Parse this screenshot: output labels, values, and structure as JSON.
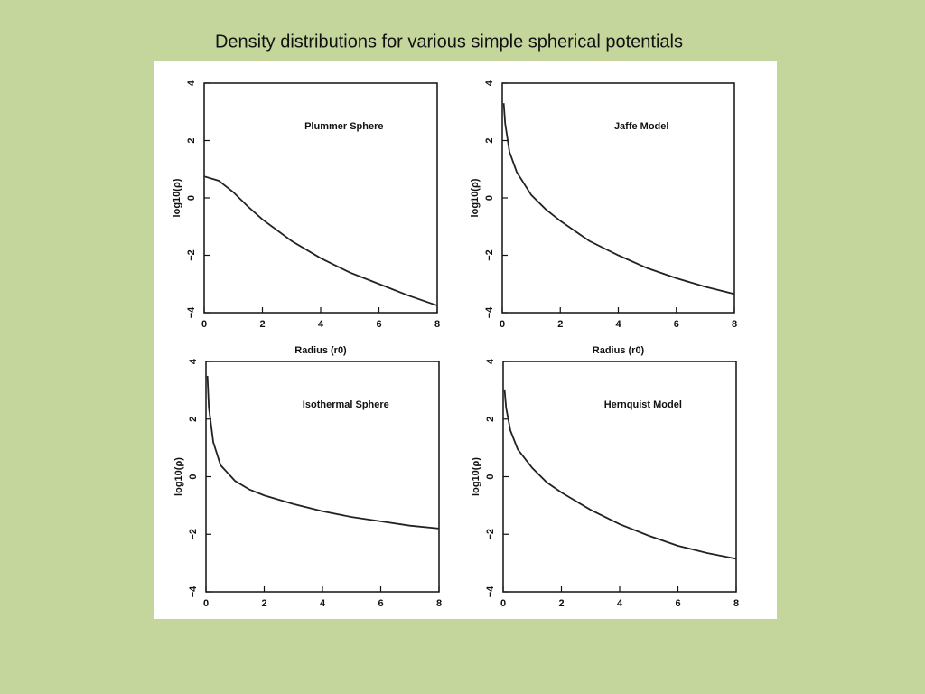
{
  "title": "Density distributions for various simple spherical potentials",
  "chart_data": [
    {
      "type": "line",
      "title": "Plummer Sphere",
      "xlabel": "Radius (r0)",
      "ylabel": "log10(ρ)",
      "x": [
        0,
        0.5,
        1,
        1.5,
        2,
        3,
        4,
        5,
        6,
        7,
        8
      ],
      "values": [
        0.75,
        0.6,
        0.2,
        -0.3,
        -0.75,
        -1.5,
        -2.1,
        -2.6,
        -3.0,
        -3.4,
        -3.75
      ],
      "color": "#222222",
      "xlim": [
        0,
        8
      ],
      "ylim": [
        -4,
        4
      ],
      "xticks": [
        0,
        2,
        4,
        6,
        8
      ],
      "yticks": [
        {
          "value": -4,
          "label": "−4"
        },
        {
          "value": -2,
          "label": "−2"
        },
        0,
        2,
        4
      ]
    },
    {
      "type": "line",
      "title": "Jaffe Model",
      "xlabel": "Radius (r0)",
      "ylabel": "log10(ρ)",
      "x": [
        0.05,
        0.1,
        0.25,
        0.5,
        1,
        1.5,
        2,
        3,
        4,
        5,
        6,
        7,
        8
      ],
      "values": [
        3.3,
        2.6,
        1.6,
        0.9,
        0.1,
        -0.4,
        -0.8,
        -1.5,
        -2.0,
        -2.45,
        -2.8,
        -3.1,
        -3.35
      ],
      "color": "#222222",
      "xlim": [
        0,
        8
      ],
      "ylim": [
        -4,
        4
      ],
      "xticks": [
        0,
        2,
        4,
        6,
        8
      ],
      "yticks": [
        {
          "value": -4,
          "label": "−4"
        },
        {
          "value": -2,
          "label": "−2"
        },
        0,
        2,
        4
      ]
    },
    {
      "type": "line",
      "title": "Isothermal Sphere",
      "ylabel": "log10(ρ)",
      "x": [
        0.05,
        0.1,
        0.25,
        0.5,
        1,
        1.5,
        2,
        3,
        4,
        5,
        6,
        7,
        8
      ],
      "values": [
        3.5,
        2.4,
        1.2,
        0.4,
        -0.15,
        -0.45,
        -0.65,
        -0.95,
        -1.2,
        -1.4,
        -1.55,
        -1.7,
        -1.8
      ],
      "color": "#222222",
      "xlim": [
        0,
        8
      ],
      "ylim": [
        -4,
        4
      ],
      "xticks": [
        0,
        2,
        4,
        6,
        8
      ],
      "yticks": [
        {
          "value": -4,
          "label": "−4"
        },
        {
          "value": -2,
          "label": "−2"
        },
        0,
        2,
        4
      ]
    },
    {
      "type": "line",
      "title": "Hernquist Model",
      "ylabel": "log10(ρ)",
      "x": [
        0.05,
        0.1,
        0.25,
        0.5,
        1,
        1.5,
        2,
        3,
        4,
        5,
        6,
        7,
        8
      ],
      "values": [
        3.0,
        2.4,
        1.6,
        0.95,
        0.3,
        -0.2,
        -0.55,
        -1.15,
        -1.65,
        -2.05,
        -2.4,
        -2.65,
        -2.85
      ],
      "color": "#222222",
      "xlim": [
        0,
        8
      ],
      "ylim": [
        -4,
        4
      ],
      "xticks": [
        0,
        2,
        4,
        6,
        8
      ],
      "yticks": [
        {
          "value": -4,
          "label": "−4"
        },
        {
          "value": -2,
          "label": "−2"
        },
        0,
        2,
        4
      ]
    }
  ]
}
